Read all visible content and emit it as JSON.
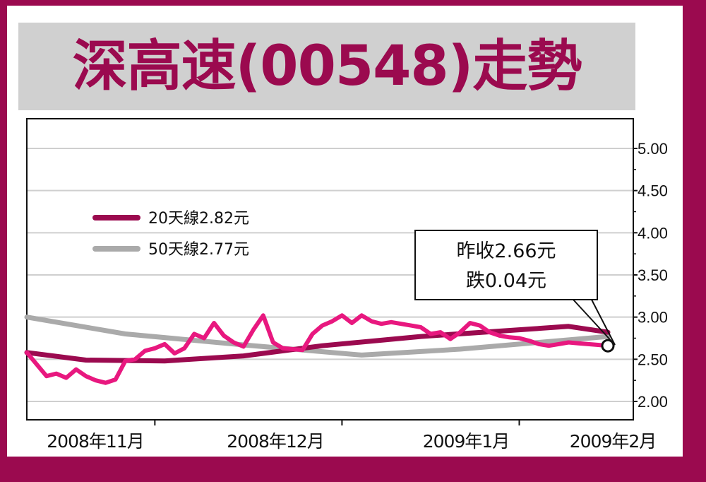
{
  "title": "深高速(00548)走勢",
  "colors": {
    "frame": "#9b0a4f",
    "ma20": "#9b0a4f",
    "ma50": "#aaaaaa",
    "price": "#e8187f"
  },
  "legend": [
    {
      "label": "20天線2.82元",
      "series": "ma20"
    },
    {
      "label": "50天線2.77元",
      "series": "ma50"
    }
  ],
  "callout": {
    "line1": "昨收2.66元",
    "line2": "跌0.04元"
  },
  "chart_data": {
    "type": "line",
    "title": "深高速(00548)走勢",
    "xlabel": "",
    "ylabel": "",
    "ylim": [
      2.0,
      5.0
    ],
    "yticks": [
      "2.00",
      "2.50",
      "3.00",
      "3.50",
      "4.00",
      "4.50",
      "5.00"
    ],
    "grid": true,
    "legend_position": "left",
    "x_tick_labels": [
      "2008年11月",
      "2008年12月",
      "2009年1月",
      "2009年2月"
    ],
    "x_range": [
      0,
      60
    ],
    "x_tick_positions": [
      13,
      32,
      50,
      60
    ],
    "series": [
      {
        "name": "20天線",
        "key": "ma20",
        "x": [
          0,
          6,
          14,
          22,
          30,
          40,
          50,
          55,
          59
        ],
        "values": [
          2.58,
          2.49,
          2.48,
          2.54,
          2.66,
          2.77,
          2.85,
          2.89,
          2.82
        ]
      },
      {
        "name": "50天線",
        "key": "ma50",
        "x": [
          0,
          10,
          22,
          34,
          44,
          52,
          59
        ],
        "values": [
          3.0,
          2.8,
          2.67,
          2.55,
          2.62,
          2.7,
          2.77
        ]
      },
      {
        "name": "",
        "key": "price",
        "x": [
          0,
          2,
          3,
          4,
          5,
          6,
          7,
          8,
          9,
          10,
          11,
          12,
          13,
          14,
          15,
          16,
          17,
          18,
          19,
          20,
          21,
          22,
          23,
          24,
          25,
          26,
          27,
          28,
          29,
          30,
          31,
          32,
          33,
          34,
          35,
          36,
          37,
          38,
          39,
          40,
          41,
          42,
          43,
          44,
          45,
          46,
          47,
          48,
          49,
          50,
          51,
          52,
          53,
          54,
          55,
          56,
          57,
          58,
          59
        ],
        "values": [
          2.58,
          2.3,
          2.33,
          2.28,
          2.38,
          2.3,
          2.25,
          2.22,
          2.26,
          2.48,
          2.5,
          2.6,
          2.63,
          2.68,
          2.57,
          2.63,
          2.8,
          2.75,
          2.93,
          2.78,
          2.7,
          2.65,
          2.85,
          3.02,
          2.7,
          2.63,
          2.62,
          2.61,
          2.8,
          2.9,
          2.95,
          3.02,
          2.93,
          3.02,
          2.95,
          2.92,
          2.94,
          2.92,
          2.9,
          2.88,
          2.8,
          2.82,
          2.74,
          2.82,
          2.93,
          2.9,
          2.82,
          2.78,
          2.76,
          2.75,
          2.72,
          2.68,
          2.66,
          2.68,
          2.7,
          2.69,
          2.68,
          2.67,
          2.66
        ]
      }
    ]
  }
}
